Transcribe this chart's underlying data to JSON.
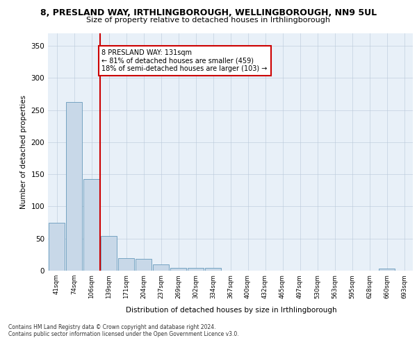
{
  "title1": "8, PRESLAND WAY, IRTHLINGBOROUGH, WELLINGBOROUGH, NN9 5UL",
  "title2": "Size of property relative to detached houses in Irthlingborough",
  "xlabel": "Distribution of detached houses by size in Irthlingborough",
  "ylabel": "Number of detached properties",
  "bar_labels": [
    "41sqm",
    "74sqm",
    "106sqm",
    "139sqm",
    "171sqm",
    "204sqm",
    "237sqm",
    "269sqm",
    "302sqm",
    "334sqm",
    "367sqm",
    "400sqm",
    "432sqm",
    "465sqm",
    "497sqm",
    "530sqm",
    "563sqm",
    "595sqm",
    "628sqm",
    "660sqm",
    "693sqm"
  ],
  "bar_values": [
    75,
    262,
    143,
    54,
    19,
    18,
    10,
    4,
    4,
    4,
    0,
    0,
    0,
    0,
    0,
    0,
    0,
    0,
    0,
    3,
    0
  ],
  "bar_color": "#c8d8e8",
  "bar_edge_color": "#6699bb",
  "annotation_text": "8 PRESLAND WAY: 131sqm\n← 81% of detached houses are smaller (459)\n18% of semi-detached houses are larger (103) →",
  "annotation_box_color": "#ffffff",
  "annotation_box_edge": "#cc0000",
  "red_line_color": "#cc0000",
  "ylim": [
    0,
    370
  ],
  "yticks": [
    0,
    50,
    100,
    150,
    200,
    250,
    300,
    350
  ],
  "footer1": "Contains HM Land Registry data © Crown copyright and database right 2024.",
  "footer2": "Contains public sector information licensed under the Open Government Licence v3.0.",
  "plot_bg_color": "#e8f0f8"
}
